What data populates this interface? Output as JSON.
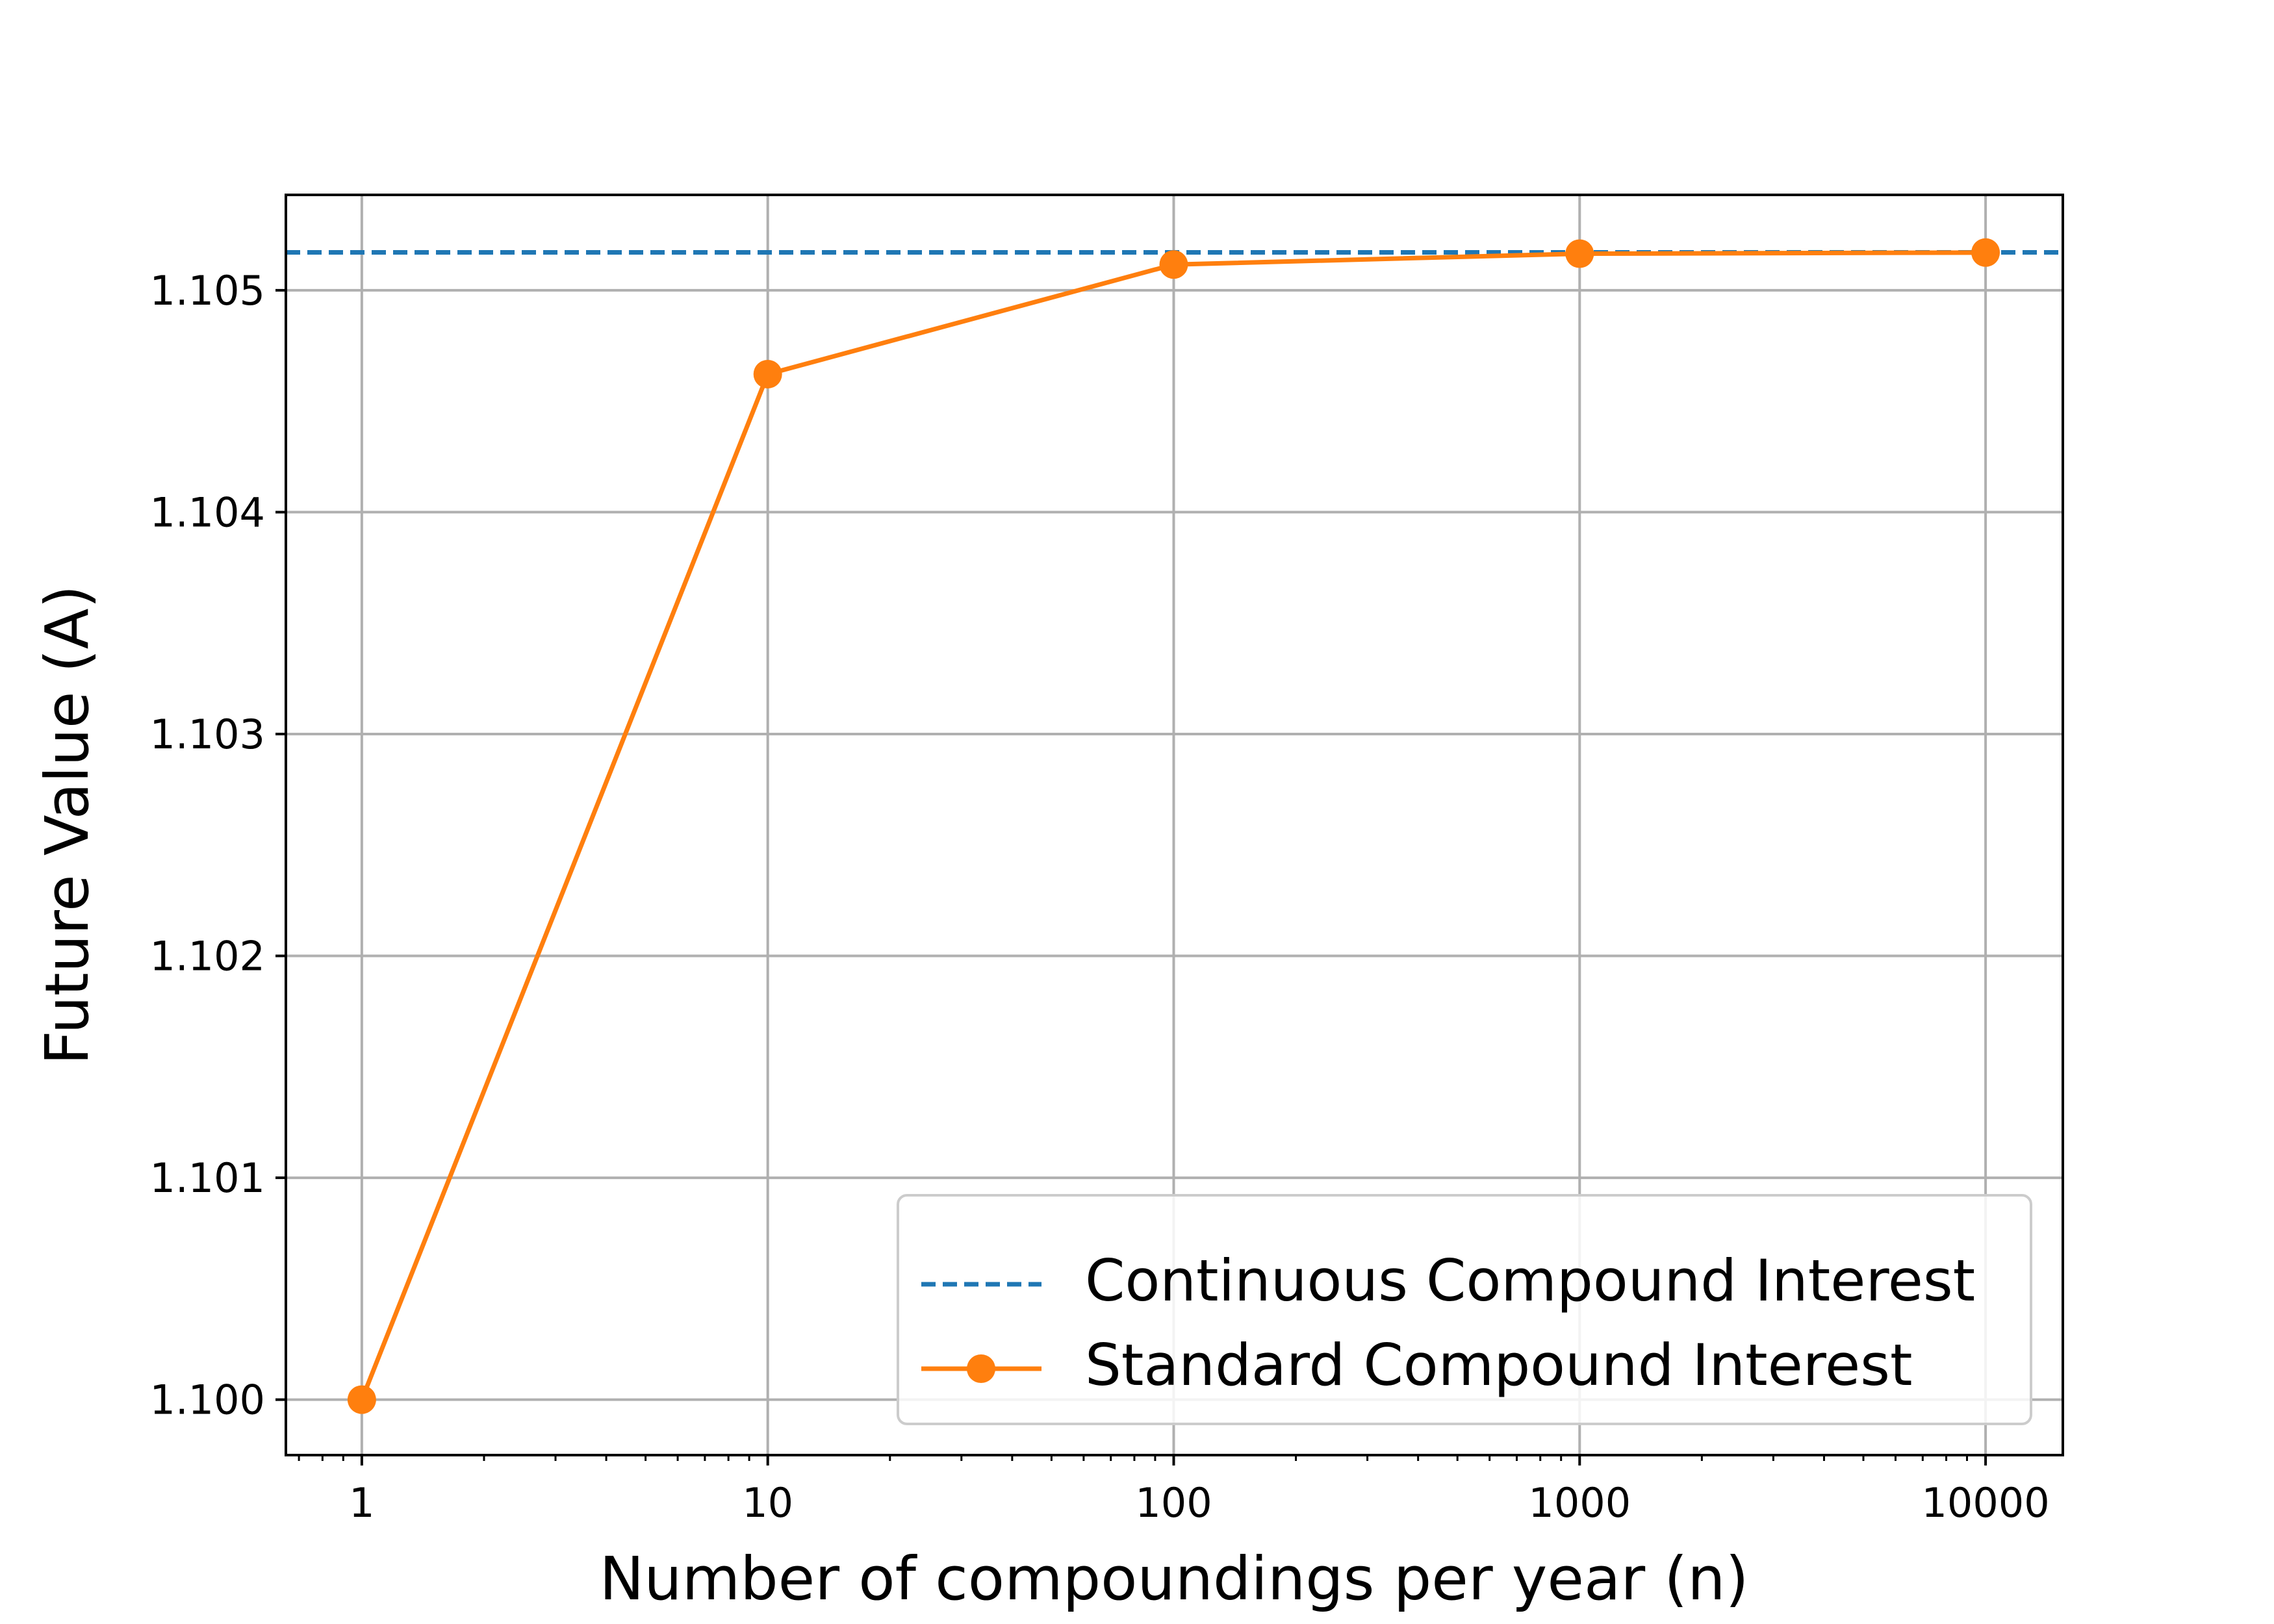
{
  "chart_data": {
    "type": "line",
    "title": "",
    "xlabel": "Number of compoundings per year (n)",
    "ylabel": "Future Value (A)",
    "x_scale": "log",
    "xlim": [
      0.65,
      15500
    ],
    "ylim": [
      1.09975,
      1.10543
    ],
    "grid": true,
    "legend_position": "lower-right",
    "x_ticks": [
      {
        "value": 1,
        "label": "1"
      },
      {
        "value": 10,
        "label": "10"
      },
      {
        "value": 100,
        "label": "100"
      },
      {
        "value": 1000,
        "label": "1000"
      },
      {
        "value": 10000,
        "label": "10000"
      }
    ],
    "y_ticks": [
      {
        "value": 1.1,
        "label": "1.100"
      },
      {
        "value": 1.101,
        "label": "1.101"
      },
      {
        "value": 1.102,
        "label": "1.102"
      },
      {
        "value": 1.103,
        "label": "1.103"
      },
      {
        "value": 1.104,
        "label": "1.104"
      },
      {
        "value": 1.105,
        "label": "1.105"
      }
    ],
    "series": [
      {
        "name": "Continuous Compound Interest",
        "style": "dashed",
        "marker": "none",
        "color": "#1f77b4",
        "x": [
          0.65,
          15500
        ],
        "y": [
          1.105171,
          1.105171
        ]
      },
      {
        "name": "Standard Compound Interest",
        "style": "solid",
        "marker": "circle",
        "color": "#ff7f0e",
        "x": [
          1,
          10,
          100,
          1000,
          10000
        ],
        "y": [
          1.1,
          1.104622,
          1.105116,
          1.105165,
          1.10517
        ]
      }
    ]
  }
}
